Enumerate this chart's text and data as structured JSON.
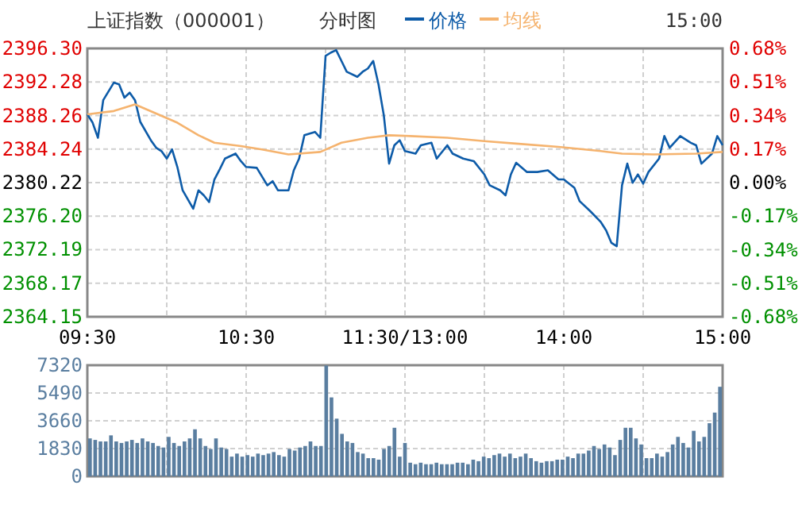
{
  "chart_data": [
    {
      "type": "line",
      "title": "上证指数（000001）",
      "subtitle": "分时图",
      "annotations": [
        "15:00"
      ],
      "legend": "top",
      "grid": true,
      "categories": [
        "09:30",
        null,
        null,
        null,
        null,
        null,
        null,
        null,
        null,
        null,
        null,
        null,
        null,
        null,
        null,
        null,
        null,
        null,
        null,
        null,
        null,
        null,
        null,
        null,
        null,
        null,
        null,
        null,
        null,
        null,
        "10:30",
        null,
        null,
        null,
        null,
        null,
        null,
        null,
        null,
        null,
        null,
        null,
        null,
        null,
        null,
        null,
        null,
        null,
        null,
        null,
        null,
        null,
        null,
        null,
        null,
        null,
        null,
        null,
        null,
        null,
        "11:30/13:00",
        null,
        null,
        null,
        null,
        null,
        null,
        null,
        null,
        null,
        null,
        null,
        null,
        null,
        null,
        null,
        null,
        null,
        null,
        null,
        null,
        null,
        null,
        null,
        null,
        null,
        null,
        null,
        null,
        null,
        "14:00",
        null,
        null,
        null,
        null,
        null,
        null,
        null,
        null,
        null,
        null,
        null,
        null,
        null,
        null,
        null,
        null,
        null,
        null,
        null,
        null,
        null,
        null,
        null,
        null,
        null,
        null,
        null,
        null,
        null,
        "15:00"
      ],
      "ylim": [
        2364.15,
        2396.3
      ],
      "yticks": [
        {
          "value": 2396.3,
          "label": "2396.30"
        },
        {
          "value": 2392.28,
          "label": "2392.28"
        },
        {
          "value": 2388.26,
          "label": "2388.26"
        },
        {
          "value": 2384.24,
          "label": "2384.24"
        },
        {
          "value": 2380.22,
          "label": "2380.22"
        },
        {
          "value": 2376.2,
          "label": "2376.20"
        },
        {
          "value": 2372.19,
          "label": "2372.19"
        },
        {
          "value": 2368.17,
          "label": "2368.17"
        },
        {
          "value": 2364.15,
          "label": "2364.15"
        }
      ],
      "y2lim": [
        -0.68,
        0.68
      ],
      "y2ticks": [
        {
          "value": 0.68,
          "label": "0.68%"
        },
        {
          "value": 0.51,
          "label": "0.51%"
        },
        {
          "value": 0.34,
          "label": "0.34%"
        },
        {
          "value": 0.17,
          "label": "0.17%"
        },
        {
          "value": 0,
          "label": "0.00%"
        },
        {
          "value": -0.17,
          "label": "-0.17%"
        },
        {
          "value": -0.34,
          "label": "-0.34%"
        },
        {
          "value": -0.51,
          "label": "-0.51%"
        },
        {
          "value": -0.68,
          "label": "-0.68%"
        }
      ],
      "series": [
        {
          "name": "价格",
          "color": "#0d5ba8",
          "values": [
            2388.4,
            2387.4,
            2385.6,
            2390.1,
            null,
            2392.2,
            2392.0,
            2390.4,
            2391.0,
            2390.1,
            2387.5,
            null,
            2385.3,
            2384.4,
            2384.0,
            2383.1,
            2384.2,
            2382.1,
            2379.3,
            null,
            2377.1,
            2379.3,
            2378.7,
            2377.9,
            2380.6,
            2381.8,
            2383.1,
            null,
            2383.7,
            2382.8,
            2382.1,
            null,
            2382.0,
            null,
            2379.9,
            2380.4,
            2379.3,
            null,
            2379.3,
            2381.7,
            2383.1,
            2385.9,
            null,
            2386.3,
            2385.6,
            2395.4,
            2395.8,
            2396.1,
            2394.8,
            2393.5,
            null,
            2392.9,
            2393.5,
            2393.9,
            2394.8,
            2392.0,
            2388.3,
            2382.5,
            2384.7,
            2385.3,
            2384.0,
            null,
            2383.7,
            2384.7,
            null,
            2385.0,
            2383.1,
            null,
            2384.7,
            2383.7,
            null,
            2383.1,
            null,
            2382.8,
            null,
            2381.2,
            2379.9,
            null,
            2379.3,
            2378.7,
            2381.2,
            2382.6,
            null,
            2381.5,
            null,
            2381.5,
            null,
            2381.7,
            null,
            2380.6,
            2380.6,
            null,
            2379.6,
            2378.0,
            null,
            2376.8,
            null,
            2375.5,
            2374.5,
            2373.0,
            2372.6,
            2379.9,
            2382.5,
            2380.2,
            2381.2,
            2380.1,
            2381.5,
            null,
            2383.1,
            2385.8,
            2384.4,
            null,
            2385.8,
            null,
            2385.0,
            2384.7,
            2382.5,
            null,
            2383.7,
            2385.8,
            2384.7
          ]
        },
        {
          "name": "均线",
          "color": "#f5b36e",
          "values": [
            2388.4,
            null,
            null,
            null,
            null,
            2388.8,
            null,
            null,
            null,
            2389.6,
            null,
            null,
            null,
            2388.5,
            null,
            null,
            null,
            2387.4,
            null,
            null,
            null,
            2385.9,
            null,
            null,
            2385.0,
            null,
            null,
            null,
            null,
            2384.6,
            null,
            null,
            null,
            2384.2,
            null,
            null,
            null,
            null,
            2383.6,
            null,
            null,
            null,
            null,
            null,
            2383.9,
            null,
            null,
            null,
            2385.0,
            null,
            null,
            null,
            null,
            2385.6,
            null,
            null,
            null,
            2385.9,
            null,
            null,
            null,
            2385.8,
            null,
            null,
            null,
            null,
            null,
            null,
            2385.6,
            null,
            null,
            null,
            null,
            null,
            null,
            2385.2,
            null,
            null,
            null,
            null,
            null,
            2384.9,
            null,
            null,
            null,
            null,
            null,
            null,
            null,
            2384.5,
            null,
            null,
            null,
            null,
            null,
            null,
            null,
            2384.0,
            null,
            null,
            null,
            2383.7,
            null,
            null,
            null,
            null,
            null,
            2383.6,
            null,
            null,
            null,
            null,
            null,
            null,
            null,
            2383.7,
            null,
            null,
            null,
            null,
            2383.9
          ]
        }
      ]
    },
    {
      "type": "bar",
      "grid": true,
      "tick_labels": "y",
      "color": "#5a7ea0",
      "categories": [
        null,
        null,
        null,
        null,
        null,
        null,
        null,
        null,
        null,
        null,
        null,
        null,
        null,
        null,
        null,
        null,
        null,
        null,
        null,
        null,
        null,
        null,
        null,
        null,
        null,
        null,
        null,
        null,
        null,
        null,
        null,
        null,
        null,
        null,
        null,
        null,
        null,
        null,
        null,
        null,
        null,
        null,
        null,
        null,
        null,
        null,
        null,
        null,
        null,
        null,
        null,
        null,
        null,
        null,
        null,
        null,
        null,
        null,
        null,
        null,
        null,
        null,
        null,
        null,
        null,
        null,
        null,
        null,
        null,
        null,
        null,
        null,
        null,
        null,
        null,
        null,
        null,
        null,
        null,
        null,
        null,
        null,
        null,
        null,
        null,
        null,
        null,
        null,
        null,
        null,
        null,
        null,
        null,
        null,
        null,
        null,
        null,
        null,
        null,
        null,
        null,
        null,
        null,
        null,
        null,
        null,
        null,
        null,
        null,
        null,
        null,
        null,
        null,
        null,
        null,
        null,
        null,
        null,
        null,
        null,
        null
      ],
      "ylim": [
        0,
        7320
      ],
      "yticks": [
        0,
        1830,
        3660,
        5490,
        7320
      ],
      "values": [
        2500,
        2400,
        2300,
        2300,
        2700,
        2300,
        2200,
        2300,
        2400,
        2200,
        2500,
        2300,
        2200,
        2000,
        1900,
        2600,
        2200,
        2000,
        2300,
        2500,
        3100,
        2500,
        2000,
        1800,
        2500,
        1900,
        1800,
        1300,
        1500,
        1300,
        1400,
        1300,
        1500,
        1400,
        1500,
        1600,
        1400,
        1300,
        1800,
        1700,
        1900,
        2000,
        2300,
        2000,
        2000,
        7300,
        5200,
        3800,
        2800,
        2300,
        2200,
        1600,
        1500,
        1200,
        1200,
        1100,
        1800,
        2000,
        3200,
        1300,
        2200,
        900,
        800,
        900,
        800,
        800,
        900,
        800,
        800,
        800,
        900,
        900,
        800,
        1100,
        1000,
        1300,
        1200,
        1400,
        1500,
        1300,
        1500,
        1200,
        1300,
        1500,
        1200,
        1000,
        900,
        1000,
        1000,
        1100,
        1100,
        1300,
        1200,
        1500,
        1500,
        1700,
        2000,
        1800,
        2100,
        1900,
        1400,
        2400,
        3200,
        3200,
        2500,
        2100,
        1200,
        1200,
        1500,
        1300,
        1600,
        2100,
        2600,
        2200,
        1900,
        3000,
        2300,
        2600,
        3500,
        4200,
        5900
      ]
    }
  ]
}
